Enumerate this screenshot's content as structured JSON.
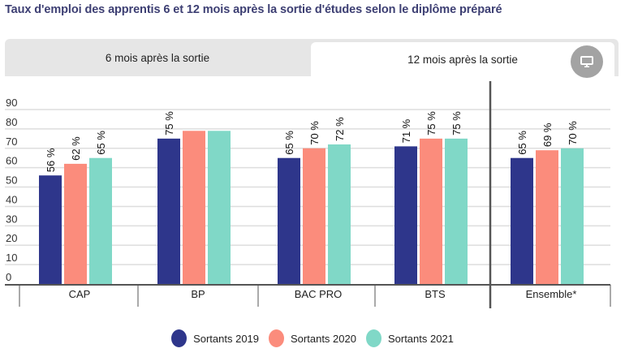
{
  "title": "Taux d'emploi des apprentis 6 et 12 mois après la sortie d'études selon le diplôme préparé",
  "tabs": [
    {
      "label": "6 mois après la sortie",
      "active": false
    },
    {
      "label": "12 mois après la sortie",
      "active": true
    }
  ],
  "device_button": {
    "icon": "monitor-icon"
  },
  "colors": {
    "s2019": "#2e368b",
    "s2020": "#fb8c7c",
    "s2021": "#80d8c7",
    "grid": "#dedede",
    "axis": "#555555"
  },
  "chart_data": {
    "type": "bar",
    "title": "Taux d'emploi des apprentis 6 et 12 mois après la sortie d'études selon le diplôme préparé",
    "xlabel": "",
    "ylabel": "",
    "ylim": [
      0,
      90
    ],
    "yticks": [
      0,
      10,
      20,
      30,
      40,
      50,
      60,
      70,
      80,
      90
    ],
    "grid": true,
    "legend_position": "bottom",
    "categories": [
      "CAP",
      "BP",
      "BAC PRO",
      "BTS",
      "Ensemble*"
    ],
    "series": [
      {
        "name": "Sortants 2019",
        "color": "#2e368b",
        "values": [
          56,
          75,
          65,
          71,
          65
        ],
        "labels": [
          "56 %",
          "75 %",
          "65 %",
          "71 %",
          "65 %"
        ]
      },
      {
        "name": "Sortants 2020",
        "color": "#fb8c7c",
        "values": [
          62,
          79,
          70,
          75,
          69
        ],
        "labels": [
          "62 %",
          "",
          "70 %",
          "75 %",
          "69 %"
        ]
      },
      {
        "name": "Sortants 2021",
        "color": "#80d8c7",
        "values": [
          65,
          79,
          72,
          75,
          70
        ],
        "labels": [
          "65 %",
          "",
          "72 %",
          "75 %",
          "70 %"
        ]
      }
    ],
    "separator_before_category": "Ensemble*"
  },
  "legend": [
    {
      "label": "Sortants 2019",
      "color": "#2e368b"
    },
    {
      "label": "Sortants 2020",
      "color": "#fb8c7c"
    },
    {
      "label": "Sortants 2021",
      "color": "#80d8c7"
    }
  ]
}
